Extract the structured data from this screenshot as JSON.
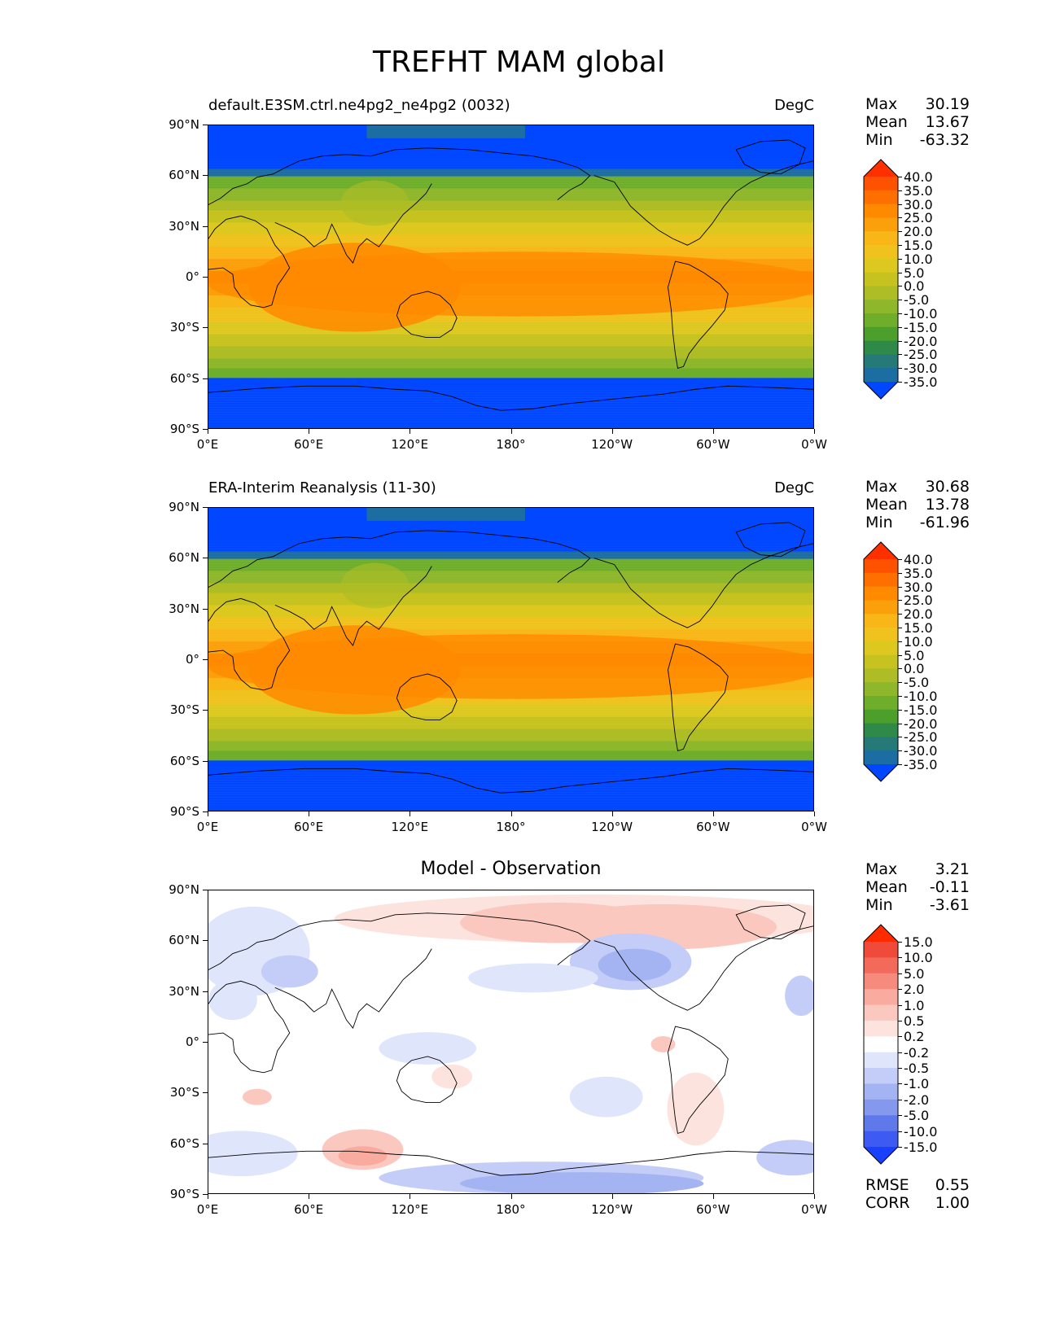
{
  "title": "TREFHT MAM global",
  "axes": {
    "lat_ticks": [
      "90°N",
      "60°N",
      "30°N",
      "0°",
      "30°S",
      "60°S",
      "90°S"
    ],
    "lon_ticks": [
      "0°E",
      "60°E",
      "120°E",
      "180°",
      "120°W",
      "60°W",
      "0°W"
    ]
  },
  "panels": [
    {
      "id": "model",
      "title_left": "default.E3SM.ctrl.ne4pg2_ne4pg2 (0032)",
      "title_center": "",
      "units": "DegC",
      "stats": [
        {
          "label": "Max",
          "value": "30.19"
        },
        {
          "label": "Mean",
          "value": "13.67"
        },
        {
          "label": "Min",
          "value": "-63.32"
        }
      ],
      "colorbar": {
        "levels": [
          "40.0",
          "35.0",
          "30.0",
          "25.0",
          "20.0",
          "15.0",
          "10.0",
          "5.0",
          "0.0",
          "-5.0",
          "-10.0",
          "-15.0",
          "-20.0",
          "-25.0",
          "-30.0",
          "-35.0"
        ],
        "colors": [
          "#ff3000",
          "#ff5200",
          "#ff6f00",
          "#ff8a00",
          "#fb9f0b",
          "#f8b716",
          "#f0c21d",
          "#dcc81f",
          "#c6c21f",
          "#aebd25",
          "#8fb72c",
          "#6eae2b",
          "#4b9f2a",
          "#2f8a4a",
          "#257a77",
          "#1b6da2",
          "#0047ff"
        ]
      }
    },
    {
      "id": "obs",
      "title_left": "ERA-Interim Reanalysis (11-30)",
      "title_center": "",
      "units": "DegC",
      "stats": [
        {
          "label": "Max",
          "value": "30.68"
        },
        {
          "label": "Mean",
          "value": "13.78"
        },
        {
          "label": "Min",
          "value": "-61.96"
        }
      ],
      "colorbar": {
        "levels": [
          "40.0",
          "35.0",
          "30.0",
          "25.0",
          "20.0",
          "15.0",
          "10.0",
          "5.0",
          "0.0",
          "-5.0",
          "-10.0",
          "-15.0",
          "-20.0",
          "-25.0",
          "-30.0",
          "-35.0"
        ],
        "colors": [
          "#ff3000",
          "#ff5200",
          "#ff6f00",
          "#ff8a00",
          "#fb9f0b",
          "#f8b716",
          "#f0c21d",
          "#dcc81f",
          "#c6c21f",
          "#aebd25",
          "#8fb72c",
          "#6eae2b",
          "#4b9f2a",
          "#2f8a4a",
          "#257a77",
          "#1b6da2",
          "#0047ff"
        ]
      }
    },
    {
      "id": "diff",
      "title_left": "",
      "title_center": "Model - Observation",
      "units": "",
      "stats": [
        {
          "label": "Max",
          "value": "3.21"
        },
        {
          "label": "Mean",
          "value": "-0.11"
        },
        {
          "label": "Min",
          "value": "-3.61"
        }
      ],
      "extra_stats": [
        {
          "label": "RMSE",
          "value": "0.55"
        },
        {
          "label": "CORR",
          "value": "1.00"
        }
      ],
      "colorbar": {
        "levels": [
          "15.0",
          "10.0",
          "5.0",
          "2.0",
          "1.0",
          "0.5",
          "0.2",
          "-0.2",
          "-0.5",
          "-1.0",
          "-2.0",
          "-5.0",
          "-10.0",
          "-15.0"
        ],
        "colors": [
          "#ff2a00",
          "#f04a3a",
          "#f36a5a",
          "#f68b7d",
          "#f9ab9f",
          "#fbc8c0",
          "#fde3de",
          "#ffffff",
          "#dfe5fb",
          "#c3cdf7",
          "#a4b3f2",
          "#8498ee",
          "#6079ea",
          "#3d5bf2",
          "#1a40ff"
        ]
      }
    }
  ]
}
